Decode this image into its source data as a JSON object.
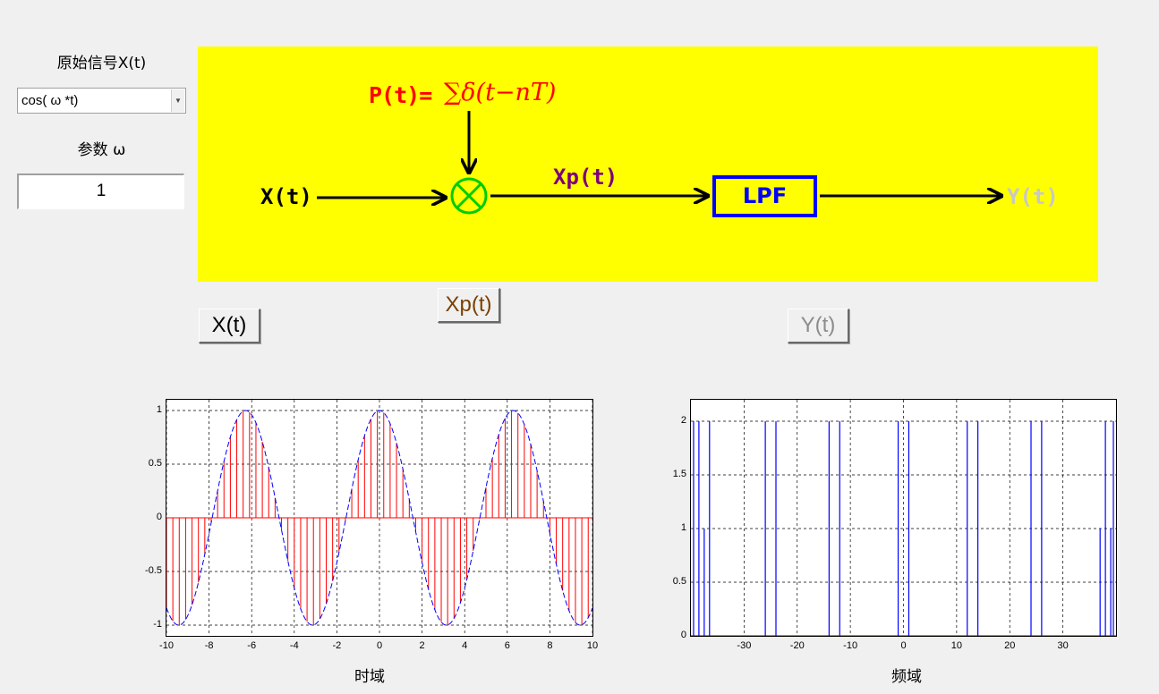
{
  "controls": {
    "signal_label": "原始信号X(t)",
    "signal_select_value": "cos( ω *t)",
    "param_label": "参数 ω",
    "param_value": "1"
  },
  "buttons": {
    "xt": "X(t)",
    "xpt": "Xp(t)",
    "yt": "Y(t)"
  },
  "diagram": {
    "input_label": "X(t)",
    "pulse_label": "P(t)=",
    "pulse_formula": "∑δ(t−nT)",
    "sampled_label": "Xp(t)",
    "filter_label": "LPF",
    "output_label": "Y(t)",
    "colors": {
      "background": "#ffff00",
      "pulse": "#ff0000",
      "sampled": "#7b007b",
      "multiplier": "#00cc00",
      "filter": "#0000ff",
      "output": "#c8c8c8"
    }
  },
  "chart_data": [
    {
      "type": "line",
      "title": "",
      "xlabel": "时域",
      "ylabel": "",
      "xlim": [
        -10,
        10
      ],
      "ylim": [
        -1.1,
        1.1
      ],
      "grid": true,
      "xticks": [
        -10,
        -8,
        -6,
        -4,
        -2,
        0,
        2,
        4,
        6,
        8,
        10
      ],
      "yticks": [
        -1,
        -0.5,
        0,
        0.5,
        1
      ],
      "series": [
        {
          "style": "dashed-line",
          "color": "#0000ff",
          "function": "cos(t)",
          "x_range": [
            -10,
            10
          ]
        },
        {
          "style": "stem",
          "color": "#ff0000",
          "sample_step": 0.3,
          "function": "cos(t)",
          "x_range": [
            -10,
            10
          ]
        }
      ]
    },
    {
      "type": "line",
      "title": "",
      "xlabel": "频域",
      "ylabel": "",
      "xlim": [
        -40,
        40
      ],
      "ylim": [
        0,
        2.2
      ],
      "grid": true,
      "xticks": [
        -30,
        -20,
        -10,
        0,
        10,
        20,
        30
      ],
      "yticks": [
        0,
        0.5,
        1,
        1.5,
        2
      ],
      "series": [
        {
          "style": "impulses",
          "color": "#0000ff",
          "points": [
            [
              -39.5,
              2
            ],
            [
              -38.5,
              2
            ],
            [
              -37.5,
              1
            ],
            [
              -36.5,
              2
            ],
            [
              -26,
              2
            ],
            [
              -24,
              2
            ],
            [
              -14,
              2
            ],
            [
              -12,
              2
            ],
            [
              -1,
              2
            ],
            [
              1,
              2
            ],
            [
              12,
              2
            ],
            [
              14,
              2
            ],
            [
              24,
              2
            ],
            [
              26,
              2
            ],
            [
              37,
              1
            ],
            [
              38,
              2
            ],
            [
              39,
              1
            ],
            [
              39.5,
              2
            ]
          ]
        }
      ]
    }
  ]
}
